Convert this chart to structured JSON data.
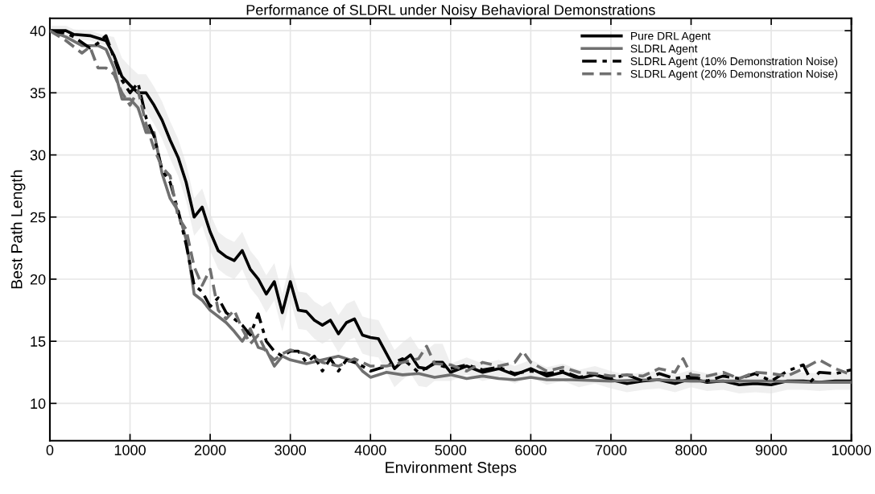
{
  "chart_data": {
    "type": "line",
    "title": "Performance of SLDRL under Noisy Behavioral Demonstrations",
    "xlabel": "Environment Steps",
    "ylabel": "Best Path Length",
    "xlim": [
      0,
      10000
    ],
    "xticks": [
      0,
      1000,
      2000,
      3000,
      4000,
      5000,
      6000,
      7000,
      8000,
      9000,
      10000
    ],
    "ylim": [
      7,
      41
    ],
    "yticks": [
      10,
      15,
      20,
      25,
      30,
      35,
      40
    ],
    "grid": true,
    "legend": "top right",
    "marker": "none",
    "series": [
      {
        "name": "Pure DRL Agent",
        "color": "#000000",
        "line_style": "solid",
        "x": [
          0,
          200,
          300,
          500,
          700,
          800,
          900,
          1000,
          1100,
          1200,
          1300,
          1400,
          1500,
          1600,
          1700,
          1800,
          1900,
          2000,
          2100,
          2200,
          2300,
          2400,
          2500,
          2600,
          2700,
          2800,
          2900,
          3000,
          3100,
          3200,
          3300,
          3400,
          3500,
          3600,
          3700,
          3800,
          3900,
          4000,
          4100,
          4200,
          4300,
          4400,
          4500,
          4600,
          4700,
          4800,
          4900,
          5000,
          5200,
          5400,
          5600,
          5800,
          6000,
          6200,
          6400,
          6600,
          6800,
          7000,
          7200,
          7400,
          7600,
          7800,
          8000,
          8200,
          8400,
          8600,
          8800,
          9000,
          9200,
          9400,
          9600,
          9800,
          10000
        ],
        "values": [
          40,
          40,
          39.7,
          39.6,
          39.2,
          38,
          36.3,
          35.6,
          35,
          35,
          34,
          32.8,
          31.2,
          29.8,
          27.8,
          25,
          25.8,
          23.8,
          22.3,
          21.8,
          21.5,
          22.3,
          20.8,
          20,
          18.8,
          19.8,
          17.3,
          19.8,
          17.5,
          17.4,
          16.7,
          16.3,
          16.7,
          15.6,
          16.5,
          16.8,
          15.5,
          15.3,
          15.2,
          14,
          12.8,
          13.4,
          13.9,
          12.9,
          12.8,
          13.3,
          13.3,
          12.5,
          13,
          12.5,
          12.8,
          12.3,
          12.8,
          12.2,
          12.5,
          12,
          12.3,
          11.9,
          11.6,
          11.8,
          11.9,
          11.6,
          12,
          11.7,
          11.8,
          11.5,
          11.6,
          11.5,
          11.8,
          11.8,
          11.7,
          11.8,
          11.8
        ],
        "lower": [
          39.6,
          39.6,
          39.3,
          39.2,
          38.8,
          36.5,
          34.8,
          34.1,
          33.5,
          33.5,
          32.5,
          31.3,
          29.7,
          28.3,
          26.3,
          23.5,
          24.3,
          22.3,
          20.8,
          20.3,
          20,
          20.8,
          19.3,
          18.5,
          17.3,
          18.3,
          15.8,
          18.3,
          16,
          15.9,
          15.2,
          14.8,
          15.2,
          14.1,
          15,
          15.3,
          14,
          13.8,
          13.7,
          12.5,
          11.3,
          11.9,
          12.4,
          11.4,
          11.3,
          11.8,
          11.8,
          11.8,
          12.3,
          11.8,
          12.1,
          11.6,
          12.1,
          11.5,
          11.8,
          11.3,
          11.6,
          11.2,
          10.9,
          11.1,
          11.2,
          10.9,
          11.3,
          11,
          11.1,
          10.8,
          10.9,
          10.8,
          11.1,
          11.1,
          11,
          11.1,
          11.1
        ],
        "upper": [
          40.4,
          40.4,
          40.1,
          40,
          39.6,
          39.5,
          37.8,
          37.1,
          36.5,
          36.5,
          35.5,
          34.3,
          32.7,
          31.3,
          29.3,
          26.5,
          27.3,
          25.3,
          23.8,
          23.3,
          23,
          23.8,
          22.3,
          21.5,
          20.3,
          21.3,
          18.8,
          21.3,
          19,
          18.9,
          18.2,
          17.8,
          18.2,
          17.1,
          18,
          18.3,
          17,
          16.8,
          16.7,
          15.5,
          14.3,
          14.9,
          15.4,
          14.4,
          14.3,
          14.8,
          14.8,
          13.2,
          13.7,
          13.2,
          13.5,
          13,
          13.5,
          12.9,
          13.2,
          12.7,
          13,
          12.6,
          12.3,
          12.5,
          12.6,
          12.3,
          12.7,
          12.4,
          12.5,
          12.2,
          12.3,
          12.2,
          12.5,
          12.5,
          12.4,
          12.5,
          12.5
        ]
      },
      {
        "name": "SLDRL Agent",
        "color": "#707070",
        "line_style": "solid",
        "x": [
          0,
          200,
          400,
          600,
          700,
          800,
          900,
          1000,
          1100,
          1200,
          1300,
          1400,
          1500,
          1600,
          1700,
          1800,
          1900,
          2000,
          2100,
          2200,
          2300,
          2400,
          2500,
          2600,
          2700,
          2800,
          2900,
          3000,
          3200,
          3400,
          3600,
          3800,
          3900,
          4000,
          4200,
          4400,
          4600,
          4800,
          5000,
          5200,
          5400,
          5600,
          5800,
          6000,
          6200,
          6500,
          7000,
          7500,
          8000,
          8500,
          9000,
          9500,
          10000
        ],
        "values": [
          40,
          39.5,
          38.8,
          38.8,
          38.5,
          37,
          34.5,
          34.5,
          33.8,
          31.8,
          31.8,
          28.5,
          26.5,
          25.5,
          23.2,
          18.8,
          18.3,
          17.5,
          17,
          16.5,
          15.8,
          15,
          16,
          14.5,
          14.3,
          13,
          13.8,
          13.5,
          13.2,
          13.5,
          13.8,
          13.4,
          12.6,
          12.1,
          12.5,
          12.3,
          12.4,
          12.1,
          12.3,
          12,
          12.2,
          12,
          11.9,
          12.1,
          11.9,
          11.9,
          11.8,
          11.9,
          11.8,
          11.8,
          11.8,
          11.7,
          11.7
        ]
      },
      {
        "name": "SLDRL Agent (10% Demonstration Noise)",
        "color": "#000000",
        "line_style": "dashdot",
        "x": [
          0,
          200,
          300,
          500,
          600,
          700,
          800,
          900,
          1000,
          1100,
          1200,
          1300,
          1400,
          1500,
          1600,
          1700,
          1800,
          1900,
          2000,
          2100,
          2200,
          2300,
          2400,
          2500,
          2600,
          2700,
          2800,
          2900,
          3000,
          3100,
          3200,
          3300,
          3400,
          3500,
          3600,
          3700,
          3800,
          3900,
          4000,
          4200,
          4400,
          4600,
          4800,
          5000,
          5200,
          5400,
          5600,
          5800,
          6000,
          6200,
          6400,
          6600,
          6800,
          7000,
          7200,
          7400,
          7600,
          7800,
          8000,
          8200,
          8400,
          8600,
          8800,
          9000,
          9200,
          9400,
          9500,
          9600,
          9800,
          10000
        ],
        "values": [
          40,
          39.8,
          39.5,
          38.6,
          39,
          39.6,
          37.8,
          36,
          35,
          35.8,
          33,
          31.5,
          28.8,
          27.8,
          25.5,
          22.8,
          19.5,
          19,
          17.8,
          18.5,
          17.3,
          16.8,
          16.3,
          15.5,
          17.2,
          15,
          14.2,
          13.8,
          14.2,
          14.2,
          13.3,
          13.8,
          12.6,
          13.6,
          12.6,
          13.5,
          13.3,
          13,
          12.6,
          13,
          13.6,
          12.5,
          13.2,
          12.8,
          13.1,
          12.7,
          12.9,
          12.4,
          12.6,
          12.4,
          12.6,
          12.1,
          12.3,
          12,
          12.3,
          11.8,
          12.4,
          12,
          12.2,
          11.8,
          12.2,
          12,
          12.4,
          11.8,
          12.6,
          13.1,
          11.8,
          12.5,
          12.4,
          12.7
        ]
      },
      {
        "name": "SLDRL Agent (20% Demonstration Noise)",
        "color": "#707070",
        "line_style": "dashed",
        "x": [
          0,
          200,
          400,
          500,
          600,
          700,
          800,
          900,
          1000,
          1100,
          1200,
          1300,
          1400,
          1500,
          1600,
          1700,
          1800,
          1900,
          2000,
          2100,
          2200,
          2300,
          2400,
          2500,
          2600,
          2700,
          2800,
          2900,
          3000,
          3200,
          3400,
          3600,
          3800,
          4000,
          4200,
          4400,
          4600,
          4700,
          4800,
          5000,
          5200,
          5400,
          5600,
          5800,
          5900,
          6000,
          6200,
          6400,
          6600,
          6800,
          7000,
          7200,
          7400,
          7600,
          7800,
          7900,
          8000,
          8200,
          8400,
          8600,
          8800,
          9000,
          9200,
          9400,
          9600,
          9800,
          10000
        ],
        "values": [
          40,
          39.2,
          38.2,
          38.7,
          37,
          37,
          36.5,
          35,
          34,
          35.2,
          32.5,
          30.5,
          29,
          28.3,
          25,
          24,
          21,
          19.5,
          20.8,
          17.5,
          16.8,
          17.5,
          16,
          14.8,
          15.5,
          14.1,
          13.5,
          14,
          14.3,
          14,
          13.3,
          13,
          13.6,
          13,
          13,
          13.3,
          13.6,
          14.6,
          13.2,
          13.1,
          12.6,
          13.3,
          13,
          13.3,
          14.2,
          13.3,
          12.6,
          12.9,
          12.5,
          12.4,
          12.2,
          12.3,
          12.2,
          12.8,
          12.5,
          13.6,
          12.3,
          12.2,
          12.5,
          12,
          12.5,
          12.4,
          12.2,
          12.8,
          13.5,
          12.8,
          12.3
        ]
      }
    ]
  }
}
